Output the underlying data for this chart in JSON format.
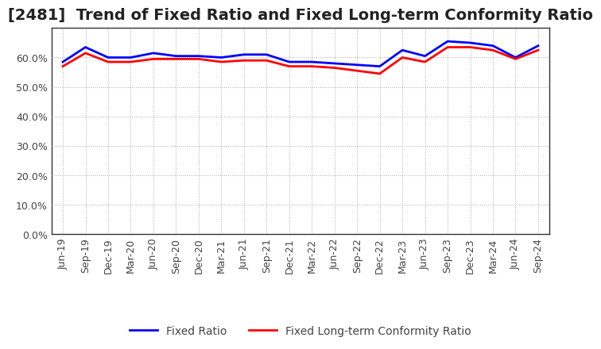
{
  "title": "[2481]  Trend of Fixed Ratio and Fixed Long-term Conformity Ratio",
  "x_labels": [
    "Jun-19",
    "Sep-19",
    "Dec-19",
    "Mar-20",
    "Jun-20",
    "Sep-20",
    "Dec-20",
    "Mar-21",
    "Jun-21",
    "Sep-21",
    "Dec-21",
    "Mar-22",
    "Jun-22",
    "Sep-22",
    "Dec-22",
    "Mar-23",
    "Jun-23",
    "Sep-23",
    "Dec-23",
    "Mar-24",
    "Jun-24",
    "Sep-24"
  ],
  "fixed_ratio": [
    58.5,
    63.5,
    60.0,
    60.0,
    61.5,
    60.5,
    60.5,
    60.0,
    61.0,
    61.0,
    58.5,
    58.5,
    58.0,
    57.5,
    57.0,
    62.5,
    60.5,
    65.5,
    65.0,
    64.0,
    60.0,
    64.0
  ],
  "fixed_lt_ratio": [
    57.0,
    61.5,
    58.5,
    58.5,
    59.5,
    59.5,
    59.5,
    58.5,
    59.0,
    59.0,
    57.0,
    57.0,
    56.5,
    55.5,
    54.5,
    60.0,
    58.5,
    63.5,
    63.5,
    62.5,
    59.5,
    62.5
  ],
  "fixed_ratio_color": "#0000ff",
  "fixed_lt_ratio_color": "#ff0000",
  "ylim_min": 0,
  "ylim_max": 70,
  "yticks": [
    0,
    10,
    20,
    30,
    40,
    50,
    60
  ],
  "background_color": "#ffffff",
  "grid_color": "#aaaaaa",
  "title_fontsize": 14,
  "legend_fontsize": 10,
  "tick_fontsize": 9,
  "line_width": 2.0
}
